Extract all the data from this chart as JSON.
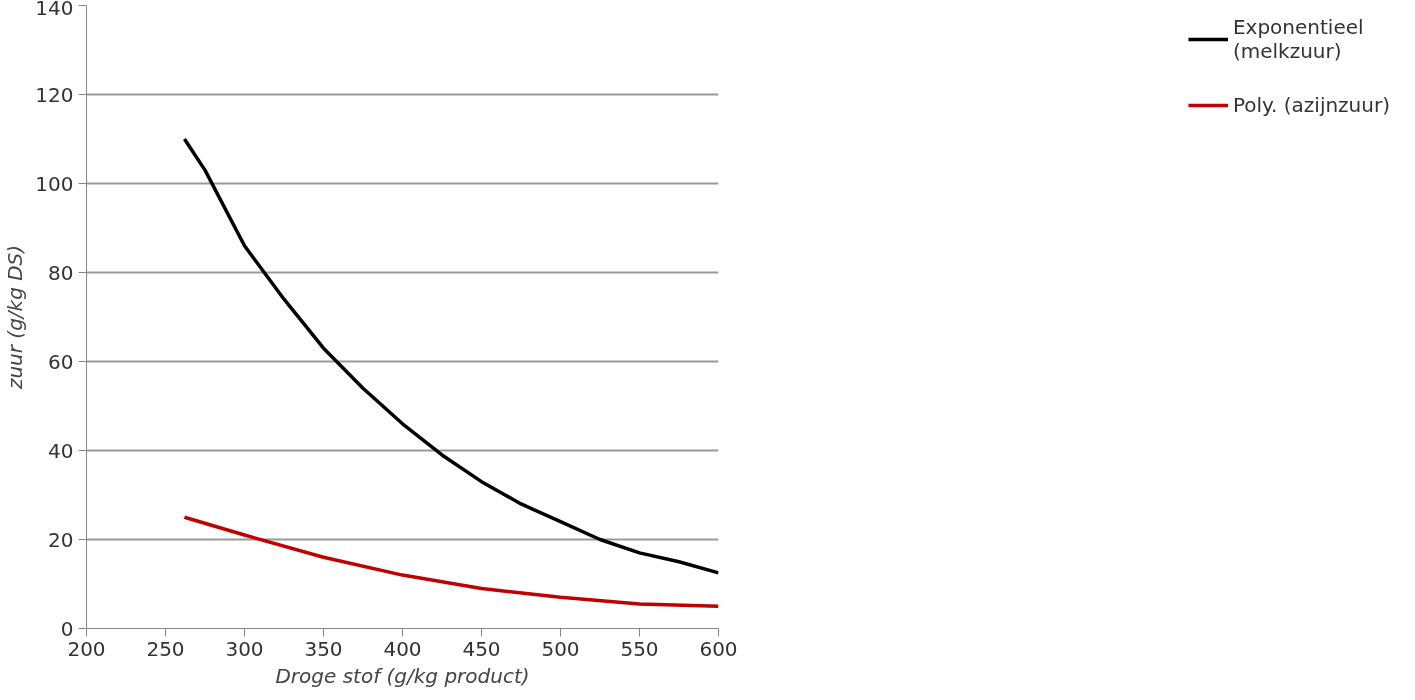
{
  "chart_data": {
    "type": "line",
    "xlabel": "Droge stof (g/kg product)",
    "ylabel": "zuur (g/kg DS)",
    "xlim": [
      200,
      600
    ],
    "xticks": [
      200,
      250,
      300,
      350,
      400,
      450,
      500,
      550,
      600
    ],
    "ylim": [
      0,
      140
    ],
    "yticks": [
      0,
      20,
      40,
      60,
      80,
      100,
      120,
      140
    ],
    "grid": "y",
    "legend": "right",
    "marker": "none",
    "line_style": "solid",
    "series": [
      {
        "name": "Exponentieel\n(melkzuur)",
        "color": "#000000",
        "x": [
          262,
          275,
          300,
          325,
          350,
          375,
          400,
          425,
          450,
          475,
          500,
          525,
          550,
          575,
          600
        ],
        "values": [
          110,
          103,
          86,
          74,
          63,
          54,
          46,
          39,
          33,
          28,
          24,
          20,
          17,
          15,
          12.5
        ]
      },
      {
        "name": "Poly. (azijnzuur)",
        "color": "#c00000",
        "x": [
          262,
          300,
          350,
          400,
          450,
          500,
          550,
          600
        ],
        "values": [
          25,
          21,
          16,
          12,
          9,
          7,
          5.5,
          5
        ]
      }
    ]
  }
}
